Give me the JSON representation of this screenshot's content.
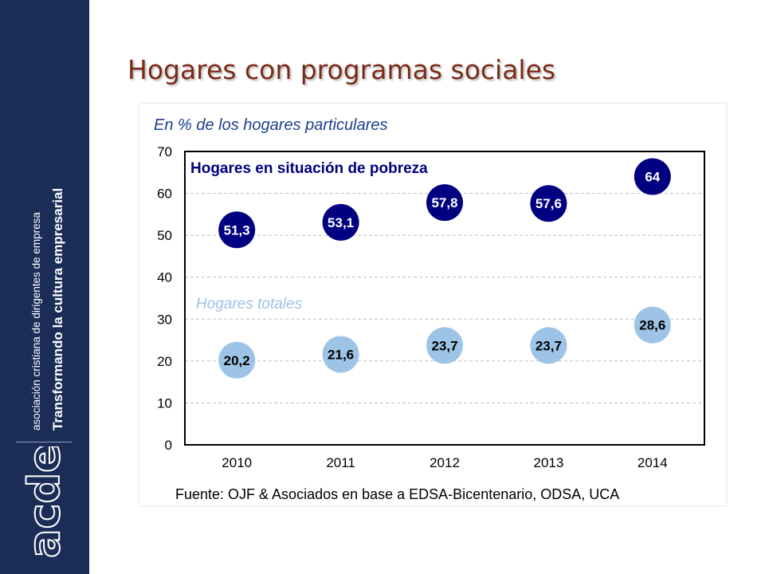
{
  "slide": {
    "title": "Hogares con programas sociales"
  },
  "brand": {
    "tagline_line1": "asociación cristiana de dirigentes de empresa",
    "tagline_line2": "Transformando la cultura empresarial",
    "logo_text": "acde"
  },
  "chart_data": {
    "type": "scatter",
    "subtitle": "En % de los hogares particulares",
    "source": "Fuente: OJF & Asociados en base a EDSA-Bicentenario, ODSA, UCA",
    "x": [
      "2010",
      "2011",
      "2012",
      "2013",
      "2014"
    ],
    "ylim": [
      0,
      70
    ],
    "yticks": [
      0,
      10,
      20,
      30,
      40,
      50,
      60,
      70
    ],
    "grid": true,
    "series": [
      {
        "name": "Hogares en situación de pobreza",
        "values": [
          51.3,
          53.1,
          57.8,
          57.6,
          64
        ],
        "labels": [
          "51,3",
          "53,1",
          "57,8",
          "57,6",
          "64"
        ],
        "color": "#000080",
        "label_color": "#ffffff"
      },
      {
        "name": "Hogares totales",
        "values": [
          20.2,
          21.6,
          23.7,
          23.7,
          28.6
        ],
        "labels": [
          "20,2",
          "21,6",
          "23,7",
          "23,7",
          "28,6"
        ],
        "color": "#9dc3e6",
        "label_color": "#000000"
      }
    ]
  }
}
